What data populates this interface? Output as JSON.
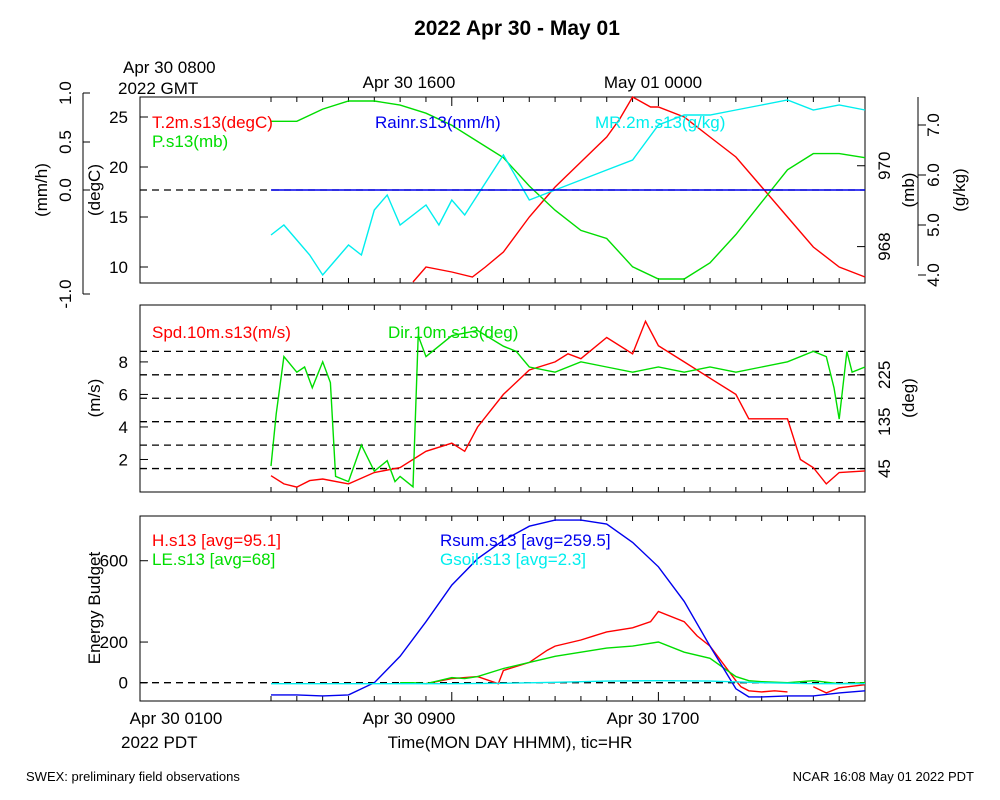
{
  "title": "2022 Apr 30 - May 01",
  "footer": {
    "left": "SWEX: preliminary field observations",
    "right": "NCAR 16:08 May 01 2022 PDT"
  },
  "top_time_axis": {
    "line1": "Apr 30 0800",
    "line2": "2022 GMT",
    "ticks": [
      "Apr 30 1600",
      "May 01 0000"
    ]
  },
  "bottom_time_axis": {
    "ticks": [
      "Apr 30 0100",
      "Apr 30 0900",
      "Apr 30 1700"
    ],
    "first_line2": "2022 PDT",
    "xlabel": "Time(MON DAY HHMM), tic=HR"
  },
  "colors": {
    "red": "#ff0000",
    "green": "#00dd00",
    "blue": "#0000ee",
    "cyan": "#00eeee"
  },
  "chart_data": [
    {
      "type": "line",
      "panel": "temperature-pressure-rain-mixing-ratio",
      "x_unit": "hours since Apr 30 0000 PDT",
      "xlim": [
        1.0,
        24.0
      ],
      "axes": {
        "rain": {
          "label": "(mm/h)",
          "ticks": [
            "-1.0",
            "0.0",
            "0.5",
            "1.0"
          ]
        },
        "temp": {
          "label": "(degC)",
          "ticks": [
            "10",
            "15",
            "20",
            "25"
          ],
          "ylim": [
            8.4,
            27.0
          ]
        },
        "pressure": {
          "label": "(mb)",
          "ticks": [
            "968",
            "970"
          ],
          "ylim": [
            967.1,
            971.7
          ]
        },
        "mixing_ratio": {
          "label": "(g/kg)",
          "ticks": [
            "4.0",
            "5.0",
            "6.0",
            "7.0"
          ],
          "ylim": [
            3.84,
            7.56
          ]
        }
      },
      "series": [
        {
          "name": "T.2m.s13(degC)",
          "color": "#ff0000",
          "axis": "temp",
          "x": [
            6.5,
            7.0,
            8.0,
            8.8,
            9.3,
            10.0,
            11.0,
            11.5,
            12.0,
            13.0,
            14.0,
            14.5,
            15.0,
            15.7,
            16.0,
            17.0,
            18.0,
            19.0,
            20.0,
            21.0,
            22.0,
            23.0,
            24.0
          ],
          "y": [
            8.5,
            10,
            9.5,
            9,
            10,
            11.5,
            15,
            16.5,
            18,
            20.5,
            23,
            24.8,
            27,
            26,
            26,
            25,
            23,
            21,
            18,
            15,
            12,
            10,
            9
          ]
        },
        {
          "name": "P.s13(mb)",
          "color": "#00dd00",
          "axis": "pressure",
          "x": [
            1,
            2,
            3,
            4,
            4.5,
            5,
            6,
            7,
            8,
            9,
            10,
            11,
            12,
            13,
            14,
            15,
            16,
            17,
            18,
            19,
            20,
            21,
            22,
            23,
            24
          ],
          "y": [
            971.1,
            971.1,
            971.4,
            971.6,
            971.6,
            971.6,
            971.5,
            971.3,
            971.0,
            970.6,
            970.2,
            969.5,
            968.9,
            968.4,
            968.2,
            967.5,
            967.2,
            967.2,
            967.6,
            968.3,
            969.1,
            969.9,
            970.3,
            970.3,
            970.2
          ]
        },
        {
          "name": "MR.2m.s13(g/kg)",
          "color": "#00eeee",
          "axis": "mixing_ratio",
          "x": [
            1,
            1.5,
            2,
            2.5,
            3,
            3.5,
            4,
            4.5,
            5,
            5.5,
            6,
            7,
            7.5,
            8,
            8.5,
            9,
            10,
            11,
            12,
            13,
            14,
            15,
            16,
            17,
            18,
            19,
            20,
            21,
            22,
            23,
            24
          ],
          "y": [
            4.8,
            5.0,
            4.7,
            4.4,
            4.0,
            4.3,
            4.6,
            4.4,
            5.3,
            5.6,
            5.0,
            5.4,
            5.0,
            5.5,
            5.2,
            5.6,
            6.4,
            5.5,
            5.7,
            5.9,
            6.1,
            6.3,
            7.0,
            7.2,
            7.2,
            7.3,
            7.4,
            7.5,
            7.3,
            7.4,
            7.3
          ]
        },
        {
          "name": "Rainr.s13(mm/h)",
          "color": "#0000ee",
          "axis": "rain",
          "x": [
            1,
            24
          ],
          "y": [
            0,
            0
          ]
        }
      ],
      "dashed_lines": [
        0
      ]
    },
    {
      "type": "line",
      "panel": "wind",
      "x_unit": "hours since Apr 30 0000 PDT",
      "xlim": [
        1.0,
        24.0
      ],
      "axes": {
        "speed": {
          "label": "(m/s)",
          "ticks": [
            "2",
            "4",
            "6",
            "8"
          ],
          "ylim": [
            0.0,
            11.5
          ]
        },
        "direction": {
          "label": "(deg)",
          "ticks": [
            "45",
            "135",
            "225"
          ],
          "ylim": [
            0,
            359
          ]
        }
      },
      "dashed_lines_deg": [
        45,
        90,
        135,
        180,
        225,
        270
      ],
      "series": [
        {
          "name": "Spd.10m.s13(m/s)",
          "color": "#ff0000",
          "axis": "speed",
          "x": [
            1,
            1.5,
            2,
            2.5,
            3,
            4,
            5,
            6,
            7,
            8,
            8.5,
            9,
            10,
            11,
            12,
            12.5,
            13,
            14,
            15,
            15.5,
            16,
            17,
            18,
            19,
            19.5,
            20,
            21,
            21.5,
            22,
            22.5,
            23,
            24
          ],
          "y": [
            1,
            0.5,
            0.3,
            0.7,
            0.8,
            0.5,
            1.2,
            1.5,
            2.5,
            3,
            2.5,
            4,
            6,
            7.5,
            8,
            8.5,
            8.2,
            9.5,
            8.5,
            10.5,
            9,
            8,
            7,
            6,
            4.5,
            4.5,
            4.5,
            2,
            1.5,
            0.5,
            1.2,
            1.3
          ]
        },
        {
          "name": "Dir.10m.s13(deg)",
          "color": "#00dd00",
          "axis": "direction",
          "x": [
            1,
            1.2,
            1.5,
            2,
            2.3,
            2.6,
            3,
            3.3,
            3.5,
            4,
            4.5,
            5,
            5.5,
            5.8,
            6,
            6.5,
            6.7,
            7,
            8,
            9,
            10,
            10.5,
            11,
            12,
            13,
            14,
            15,
            16,
            17,
            18,
            19,
            20,
            21,
            22,
            22.5,
            22.8,
            23,
            23.3,
            23.5,
            24
          ],
          "y": [
            50,
            150,
            260,
            230,
            240,
            200,
            250,
            210,
            30,
            20,
            90,
            40,
            60,
            20,
            30,
            10,
            300,
            260,
            300,
            310,
            280,
            270,
            240,
            230,
            250,
            240,
            230,
            240,
            230,
            240,
            230,
            240,
            250,
            270,
            260,
            200,
            140,
            270,
            230,
            240
          ]
        }
      ]
    },
    {
      "type": "line",
      "panel": "energy-budget",
      "x_unit": "hours since Apr 30 0000 PDT",
      "xlim": [
        1.0,
        24.0
      ],
      "ylabel": "Energy Budget",
      "yticks": [
        "0",
        "200",
        "600"
      ],
      "ylim": [
        -90,
        820
      ],
      "series": [
        {
          "name": "H.s13",
          "avg": "95.1",
          "color": "#ff0000",
          "x": [
            6.2,
            7,
            8,
            9,
            9.8,
            10,
            11,
            11.7,
            12,
            13,
            13.5,
            14,
            15,
            15.7,
            16,
            17,
            17.5,
            18,
            19,
            19.2,
            19.5,
            20,
            20.5,
            21,
            21.5,
            22,
            22.5,
            23,
            24
          ],
          "y": [
            null,
            -5,
            20,
            30,
            -5,
            60,
            100,
            160,
            180,
            210,
            230,
            250,
            270,
            300,
            350,
            300,
            230,
            180,
            10,
            -20,
            -40,
            -45,
            -40,
            -45,
            null,
            -20,
            -50,
            -25,
            -10
          ]
        },
        {
          "name": "LE.s13",
          "avg": "68",
          "color": "#00dd00",
          "x": [
            6,
            6.5,
            7,
            7.5,
            8,
            8.5,
            9,
            10,
            11,
            12,
            13,
            14,
            15,
            16,
            17,
            18,
            19,
            19.5,
            20,
            21,
            22,
            23,
            24
          ],
          "y": [
            0,
            0,
            -5,
            10,
            25,
            20,
            30,
            70,
            100,
            130,
            150,
            170,
            180,
            200,
            150,
            120,
            30,
            10,
            5,
            0,
            10,
            -5,
            0
          ]
        },
        {
          "name": "Rsum.s13",
          "avg": "259.5",
          "color": "#0000ee",
          "x": [
            1,
            2,
            3,
            4,
            5,
            6,
            7,
            8,
            9,
            10,
            11,
            12,
            13,
            13.5,
            14,
            15,
            16,
            17,
            18,
            19,
            19.5,
            20,
            21,
            22,
            23,
            24
          ],
          "y": [
            -60,
            -60,
            -65,
            -60,
            0,
            130,
            300,
            480,
            610,
            700,
            770,
            800,
            800,
            790,
            780,
            690,
            570,
            400,
            180,
            -30,
            -70,
            -70,
            -65,
            -65,
            -50,
            -40
          ]
        },
        {
          "name": "Gsoil.s13",
          "avg": "2.3",
          "color": "#00eeee",
          "x": [
            1,
            6,
            8,
            10,
            12,
            14,
            16,
            18,
            20,
            22,
            24
          ],
          "y": [
            -5,
            -5,
            -5,
            -3,
            2,
            8,
            10,
            8,
            0,
            -5,
            -5
          ]
        }
      ],
      "dashed_lines": [
        0
      ]
    }
  ]
}
